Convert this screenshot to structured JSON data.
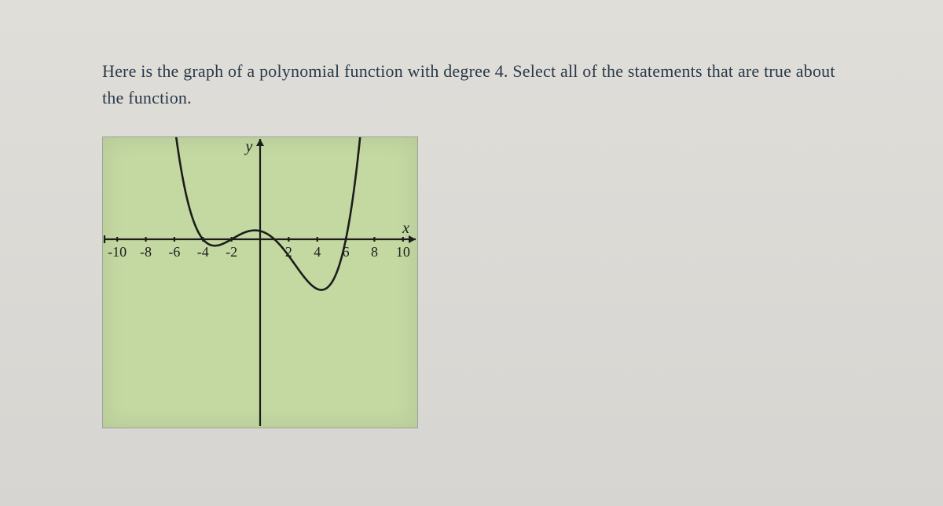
{
  "question": {
    "text": "Here is the graph of a polynomial function with degree 4. Select all of the statements that are true about the function."
  },
  "graph": {
    "type": "line",
    "background_color": "#c4d8a2",
    "axis_color": "#1d1d1d",
    "curve_color": "#1d1d1d",
    "curve_width": 2.6,
    "tick_length": 6,
    "tick_width": 2.2,
    "label_fontsize": 18,
    "axis_label_fontsize": 20,
    "x_axis_label": "x",
    "y_axis_label": "y",
    "xlim": [
      -11,
      11
    ],
    "ylim": [
      -240,
      130
    ],
    "x_ticks": [
      -10,
      -8,
      -6,
      -4,
      -2,
      2,
      4,
      6,
      8,
      10
    ],
    "x_tick_labels": [
      "-10",
      "-8",
      "-6",
      "-4",
      "-2",
      "2",
      "4",
      "6",
      "8",
      "10"
    ],
    "polynomial": {
      "leading_coeff": 0.22,
      "roots": [
        -4,
        -2,
        1,
        6
      ]
    },
    "arrow_size": 9
  }
}
